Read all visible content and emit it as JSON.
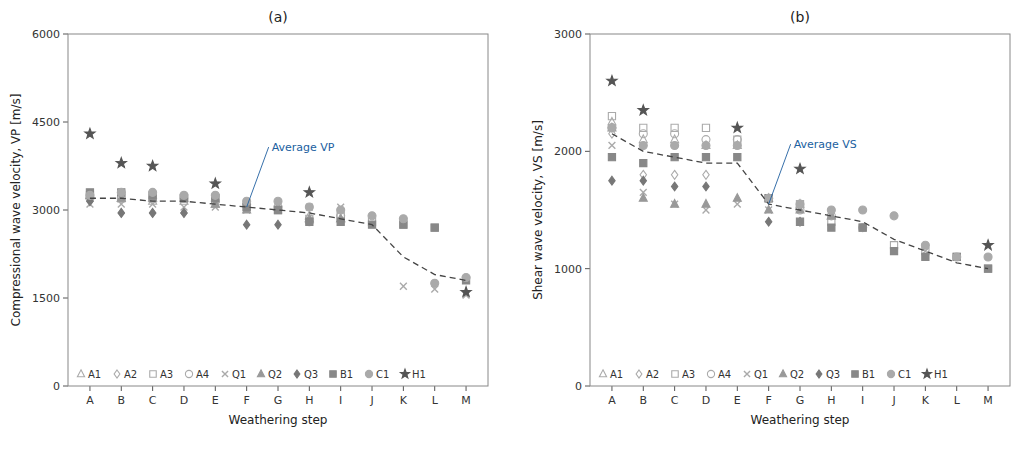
{
  "chart_data": [
    {
      "type": "scatter",
      "title": "(a)",
      "x_label": "Weathering step",
      "y_label": "Compressional wave velocity, VP [m/s]",
      "categories": [
        "A",
        "B",
        "C",
        "D",
        "E",
        "F",
        "G",
        "H",
        "I",
        "J",
        "K",
        "L",
        "M"
      ],
      "ylim": [
        0,
        6000
      ],
      "yticks": [
        0,
        1500,
        3000,
        4500,
        6000
      ],
      "grid": false,
      "legend": "lower left",
      "series": [
        {
          "name": "A1",
          "color": "#aaaaaa",
          "marker": "triangle-open",
          "values": [
            3250,
            3200,
            3150,
            3150,
            3100,
            3100,
            3050,
            2900,
            2850,
            null,
            null,
            null,
            null
          ]
        },
        {
          "name": "A2",
          "color": "#aaaaaa",
          "marker": "diamond-open",
          "values": [
            3150,
            2950,
            2950,
            2950,
            null,
            null,
            null,
            null,
            null,
            null,
            null,
            null,
            null
          ]
        },
        {
          "name": "A3",
          "color": "#aaaaaa",
          "marker": "square-open",
          "values": [
            3250,
            3200,
            3200,
            3200,
            3200,
            3050,
            3000,
            2850,
            2900,
            2800,
            2750,
            2700,
            null
          ]
        },
        {
          "name": "A4",
          "color": "#aaaaaa",
          "marker": "circle-open",
          "values": [
            3200,
            3200,
            3200,
            3200,
            3150,
            3100,
            3050,
            2800,
            2900,
            null,
            null,
            null,
            null
          ]
        },
        {
          "name": "Q1",
          "color": "#aaaaaa",
          "marker": "x",
          "values": [
            3100,
            3100,
            3100,
            3050,
            3050,
            3000,
            null,
            3050,
            3050,
            null,
            1700,
            1650,
            1550
          ]
        },
        {
          "name": "Q2",
          "color": "#999999",
          "marker": "triangle",
          "values": [
            3250,
            3200,
            3200,
            3200,
            3100,
            3000,
            3050,
            2850,
            2850,
            null,
            null,
            null,
            null
          ]
        },
        {
          "name": "Q3",
          "color": "#777777",
          "marker": "diamond",
          "values": [
            3150,
            2950,
            2950,
            2950,
            null,
            2750,
            2750,
            null,
            null,
            null,
            null,
            null,
            null
          ]
        },
        {
          "name": "B1",
          "color": "#888888",
          "marker": "square",
          "values": [
            3300,
            3300,
            3250,
            3200,
            3200,
            3050,
            3000,
            2800,
            2800,
            2750,
            2750,
            2700,
            1800
          ]
        },
        {
          "name": "C1",
          "color": "#aaaaaa",
          "marker": "circle",
          "values": [
            3250,
            3300,
            3300,
            3250,
            3250,
            3150,
            3150,
            3050,
            3000,
            2900,
            2850,
            1750,
            1850
          ]
        },
        {
          "name": "H1",
          "color": "#555555",
          "marker": "star",
          "values": [
            4300,
            3800,
            3750,
            null,
            3450,
            null,
            null,
            3300,
            null,
            null,
            null,
            null,
            1600
          ]
        },
        {
          "type": "line",
          "line_style": "dashed",
          "color": "#444444",
          "values": [
            3200,
            3200,
            3150,
            3150,
            3100,
            3050,
            3000,
            2950,
            2850,
            2750,
            2200,
            1900,
            1800
          ]
        }
      ],
      "annotations": [
        {
          "text": "Average VP"
        }
      ]
    },
    {
      "type": "scatter",
      "title": "(b)",
      "x_label": "Weathering step",
      "y_label": "Shear wave velocity, VS [m/s]",
      "categories": [
        "A",
        "B",
        "C",
        "D",
        "E",
        "F",
        "G",
        "H",
        "I",
        "J",
        "K",
        "L",
        "M"
      ],
      "ylim": [
        0,
        3000
      ],
      "yticks": [
        0,
        1000,
        2000,
        3000
      ],
      "grid": false,
      "legend": "lower left",
      "series": [
        {
          "name": "A1",
          "color": "#aaaaaa",
          "marker": "triangle-open",
          "values": [
            2250,
            2100,
            2100,
            2050,
            2050,
            1600,
            1550,
            1450,
            null,
            null,
            null,
            null,
            null
          ]
        },
        {
          "name": "A2",
          "color": "#aaaaaa",
          "marker": "diamond-open",
          "values": [
            2150,
            1800,
            1800,
            1800,
            null,
            null,
            null,
            null,
            null,
            null,
            null,
            null,
            null
          ]
        },
        {
          "name": "A3",
          "color": "#aaaaaa",
          "marker": "square-open",
          "values": [
            2300,
            2200,
            2200,
            2200,
            2100,
            1600,
            1550,
            1400,
            1350,
            1200,
            1150,
            1100,
            1000
          ]
        },
        {
          "name": "A4",
          "color": "#aaaaaa",
          "marker": "circle-open",
          "values": [
            2200,
            2150,
            2150,
            2100,
            2100,
            1600,
            1500,
            1450,
            1350,
            null,
            null,
            null,
            null
          ]
        },
        {
          "name": "Q1",
          "color": "#aaaaaa",
          "marker": "x",
          "values": [
            2050,
            1650,
            1550,
            1500,
            1550,
            1500,
            null,
            1450,
            1350,
            null,
            1150,
            1100,
            1000
          ]
        },
        {
          "name": "Q2",
          "color": "#999999",
          "marker": "triangle",
          "values": [
            2200,
            1600,
            1550,
            1550,
            1600,
            1500,
            1500,
            1450,
            null,
            null,
            null,
            null,
            null
          ]
        },
        {
          "name": "Q3",
          "color": "#777777",
          "marker": "diamond",
          "values": [
            1750,
            1750,
            1700,
            1700,
            null,
            1400,
            1400,
            null,
            null,
            null,
            null,
            null,
            null
          ]
        },
        {
          "name": "B1",
          "color": "#888888",
          "marker": "square",
          "values": [
            1950,
            1900,
            1950,
            1950,
            1950,
            1600,
            1400,
            1350,
            1350,
            1150,
            1100,
            1100,
            1000
          ]
        },
        {
          "name": "C1",
          "color": "#aaaaaa",
          "marker": "circle",
          "values": [
            2200,
            2050,
            2050,
            2050,
            2050,
            1600,
            1550,
            1500,
            1500,
            1450,
            1200,
            1100,
            1100
          ]
        },
        {
          "name": "H1",
          "color": "#555555",
          "marker": "star",
          "values": [
            2600,
            2350,
            null,
            null,
            2200,
            null,
            1850,
            null,
            null,
            null,
            null,
            null,
            1200
          ]
        },
        {
          "type": "line",
          "line_style": "dashed",
          "color": "#444444",
          "values": [
            2150,
            2000,
            1950,
            1900,
            1900,
            1550,
            1500,
            1450,
            1400,
            1250,
            1150,
            1050,
            1000
          ]
        }
      ],
      "annotations": [
        {
          "text": "Average VS"
        }
      ]
    }
  ]
}
